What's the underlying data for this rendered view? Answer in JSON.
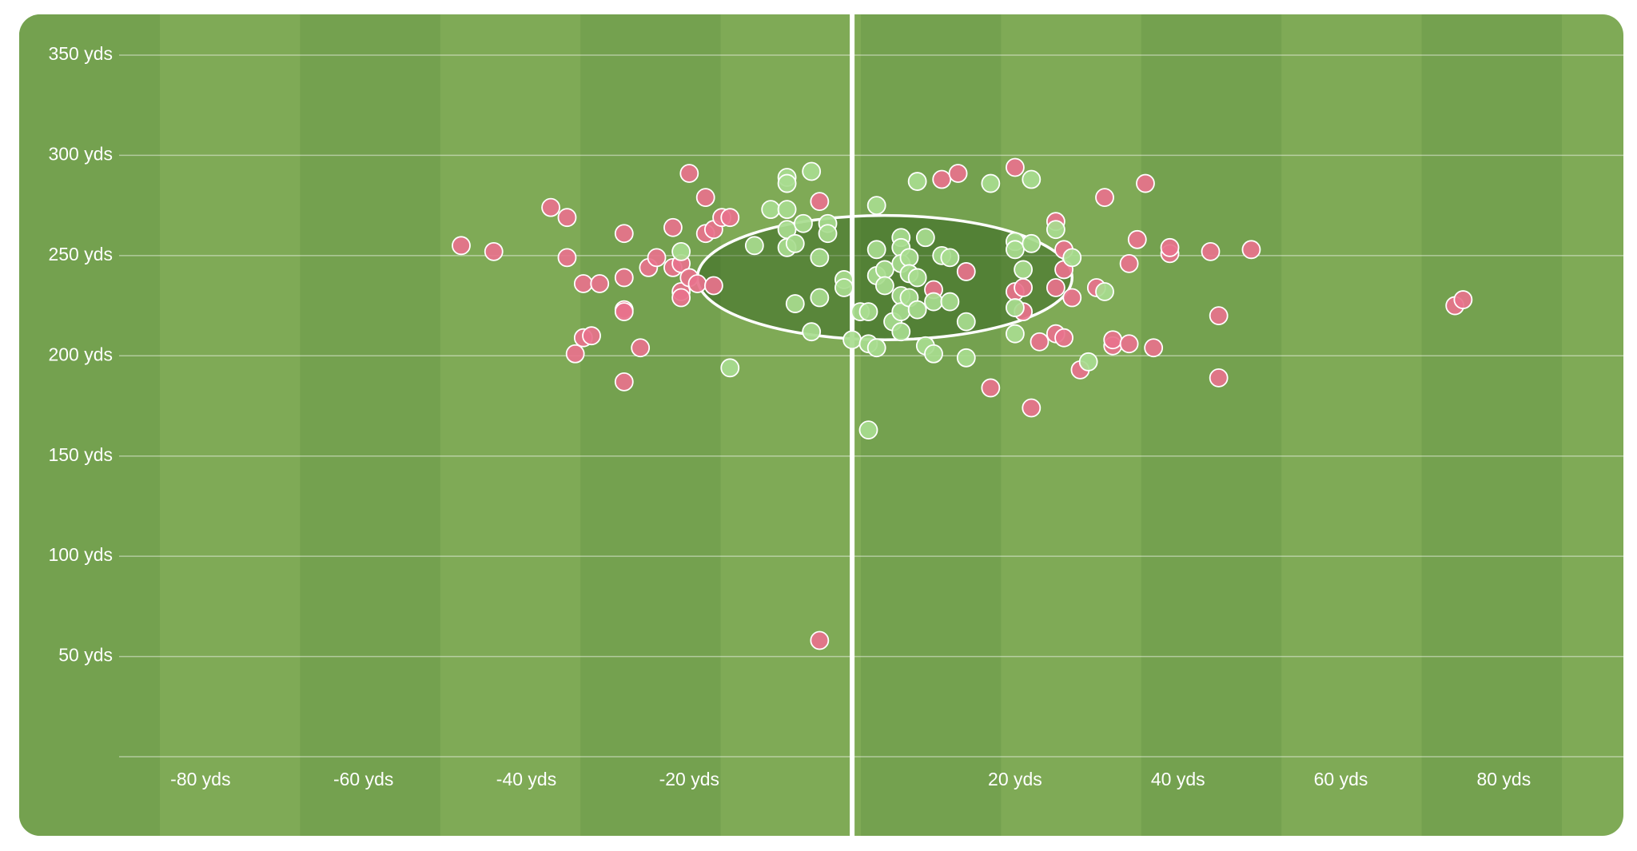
{
  "chart_data": {
    "type": "scatter",
    "xlim": [
      -90,
      94
    ],
    "ylim": [
      0,
      350
    ],
    "xticks": [
      {
        "value": -80,
        "label": "-80 yds"
      },
      {
        "value": -60,
        "label": "-60 yds"
      },
      {
        "value": -40,
        "label": "-40 yds"
      },
      {
        "value": -20,
        "label": "-20 yds"
      },
      {
        "value": 20,
        "label": "20 yds"
      },
      {
        "value": 40,
        "label": "40 yds"
      },
      {
        "value": 60,
        "label": "60 yds"
      },
      {
        "value": 80,
        "label": "80 yds"
      }
    ],
    "yticks": [
      {
        "value": 50,
        "label": "50 yds"
      },
      {
        "value": 100,
        "label": "100 yds"
      },
      {
        "value": 150,
        "label": "150 yds"
      },
      {
        "value": 200,
        "label": "200 yds"
      },
      {
        "value": 250,
        "label": "250 yds"
      },
      {
        "value": 300,
        "label": "300 yds"
      },
      {
        "value": 350,
        "label": "350 yds"
      }
    ],
    "grid": true,
    "ellipse": {
      "cx": 4,
      "cy": 239,
      "rx": 23,
      "ry": 31
    },
    "series": [
      {
        "color": "#e8728c",
        "x": [
          -48,
          -44,
          -37,
          -35,
          -35,
          -33,
          -31,
          -33,
          -32,
          -34,
          -28,
          -28,
          -28,
          -28,
          -28,
          -26,
          -25,
          -24,
          -22,
          -22,
          -21,
          -21,
          -21,
          -20,
          -20,
          -19,
          -18,
          -18,
          -17,
          -16,
          -15,
          -17,
          -4,
          -4,
          11,
          13,
          10,
          14,
          20,
          20,
          21,
          21,
          17,
          22,
          23,
          25,
          25,
          25,
          26,
          26,
          26,
          27,
          28,
          30,
          31,
          32,
          32,
          34,
          34,
          35,
          36,
          37,
          39,
          39,
          44,
          45,
          45,
          49,
          74,
          75
        ],
        "y": [
          255,
          252,
          274,
          269,
          249,
          236,
          236,
          209,
          210,
          201,
          261,
          239,
          223,
          222,
          187,
          204,
          244,
          249,
          264,
          244,
          246,
          232,
          229,
          239,
          291,
          236,
          279,
          261,
          263,
          269,
          269,
          235,
          277,
          58,
          288,
          291,
          233,
          242,
          294,
          232,
          234,
          222,
          184,
          174,
          207,
          267,
          234,
          211,
          253,
          243,
          209,
          229,
          193,
          234,
          279,
          205,
          208,
          246,
          206,
          258,
          286,
          204,
          251,
          254,
          252,
          220,
          189,
          253,
          225,
          228
        ]
      },
      {
        "color": "#a8dc8f",
        "x": [
          -21,
          -15,
          -12,
          -10,
          -8,
          -8,
          -8,
          -8,
          -8,
          -7,
          -6,
          -5,
          -5,
          -7,
          -4,
          -4,
          -3,
          -3,
          -1,
          -1,
          0,
          1,
          2,
          2,
          2,
          3,
          3,
          3,
          3,
          4,
          4,
          5,
          6,
          6,
          6,
          6,
          6,
          6,
          7,
          7,
          7,
          8,
          8,
          8,
          9,
          9,
          10,
          10,
          11,
          12,
          12,
          14,
          14,
          17,
          20,
          20,
          20,
          20,
          21,
          22,
          22,
          25,
          27,
          29,
          31
        ],
        "y": [
          252,
          194,
          255,
          273,
          289,
          286,
          273,
          263,
          254,
          256,
          266,
          292,
          212,
          226,
          249,
          229,
          266,
          261,
          238,
          234,
          208,
          222,
          222,
          163,
          206,
          204,
          275,
          253,
          240,
          243,
          235,
          217,
          259,
          254,
          246,
          230,
          222,
          212,
          249,
          241,
          229,
          239,
          223,
          287,
          259,
          205,
          201,
          227,
          250,
          249,
          227,
          217,
          199,
          286,
          257,
          253,
          224,
          211,
          243,
          288,
          256,
          263,
          249,
          197,
          232
        ]
      }
    ]
  }
}
